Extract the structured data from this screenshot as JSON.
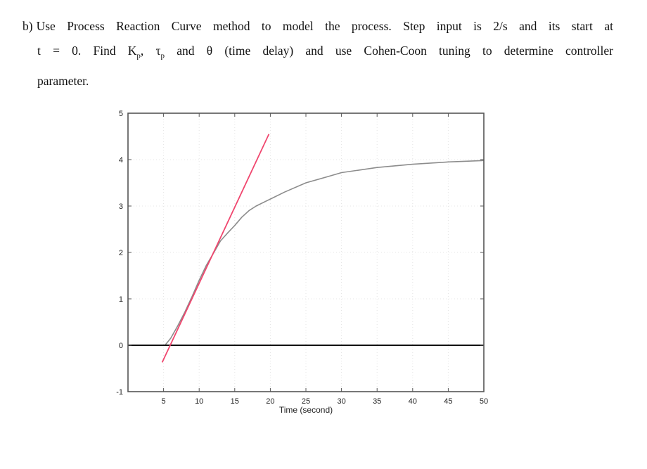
{
  "question": {
    "label": "b)",
    "line1": "Use Process Reaction Curve method to model the process. Step input is 2/s and its start at",
    "line2_parts": {
      "a": "t = 0. Find K",
      "a_sub": "p",
      "b": ", τ",
      "b_sub": "p",
      "c": " and θ (time delay) and use Cohen-Coon tuning to determine controller"
    },
    "line3": "parameter."
  },
  "chart_data": {
    "type": "line",
    "title": "",
    "xlabel": "Time (second)",
    "ylabel": "",
    "xlim": [
      0,
      50
    ],
    "ylim": [
      -1,
      5
    ],
    "grid": true,
    "legend": null,
    "x_ticks": [
      5,
      10,
      15,
      20,
      25,
      30,
      35,
      40,
      45,
      50
    ],
    "x_tick_labels": [
      "5",
      "10",
      "15",
      "20",
      "25",
      "30",
      "35",
      "40",
      "45",
      "50"
    ],
    "y_ticks": [
      -1,
      0,
      1,
      2,
      3,
      4,
      5
    ],
    "y_tick_labels": [
      "-1",
      "0",
      "1",
      "2",
      "3",
      "4",
      "5"
    ],
    "series": [
      {
        "name": "process response",
        "color": "#8c8c8c",
        "x": [
          0,
          5.2,
          6,
          7,
          8,
          9,
          10,
          11,
          12,
          13,
          14,
          15,
          16,
          17,
          18,
          20,
          22,
          25,
          28,
          30,
          35,
          40,
          45,
          50
        ],
        "y": [
          0,
          0,
          0.15,
          0.42,
          0.72,
          1.05,
          1.4,
          1.72,
          1.98,
          2.25,
          2.42,
          2.58,
          2.76,
          2.9,
          3.0,
          3.15,
          3.3,
          3.5,
          3.63,
          3.72,
          3.83,
          3.9,
          3.95,
          3.98
        ]
      },
      {
        "name": "baseline",
        "color": "#111111",
        "x": [
          0,
          50
        ],
        "y": [
          0,
          0
        ]
      },
      {
        "name": "inflection tangent",
        "color": "#f0466e",
        "x": [
          4.8,
          19.8
        ],
        "y": [
          -0.37,
          4.55
        ]
      }
    ]
  }
}
